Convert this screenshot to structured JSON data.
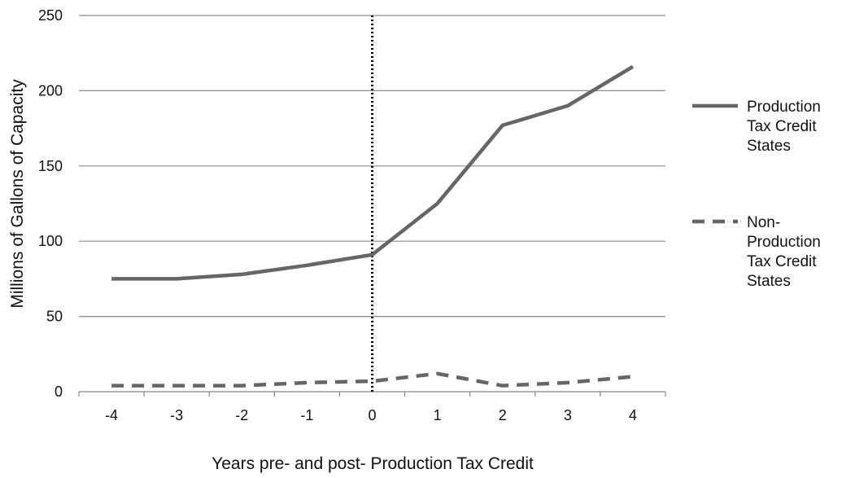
{
  "chart_data": {
    "type": "line",
    "title": "",
    "xlabel": "Years pre- and post- Production Tax Credit",
    "ylabel": "Millions of Gallons of Capacity",
    "x": [
      -4,
      -3,
      -2,
      -1,
      0,
      1,
      2,
      3,
      4
    ],
    "x_tick_labels": [
      "-4",
      "-3",
      "-2",
      "-1",
      "0",
      "1",
      "2",
      "3",
      "4"
    ],
    "ylim": [
      0,
      250
    ],
    "y_ticks": [
      0,
      50,
      100,
      150,
      200,
      250
    ],
    "y_tick_labels": [
      "0",
      "50",
      "100",
      "150",
      "200",
      "250"
    ],
    "grid": "horizontal",
    "vertical_reference_line_x": 0,
    "legend_position": "right",
    "series": [
      {
        "name": "Production Tax Credit States",
        "legend_lines": [
          "Production",
          "Tax Credit",
          "States"
        ],
        "style": "solid",
        "color": "#666666",
        "values": [
          75,
          75,
          78,
          84,
          91,
          125,
          177,
          190,
          216
        ]
      },
      {
        "name": "Non-Production Tax Credit States",
        "legend_lines": [
          "Non-",
          "Production",
          "Tax Credit",
          "States"
        ],
        "style": "dashed",
        "color": "#666666",
        "values": [
          4,
          4,
          4,
          6,
          7,
          12,
          4,
          6,
          10
        ]
      }
    ]
  }
}
